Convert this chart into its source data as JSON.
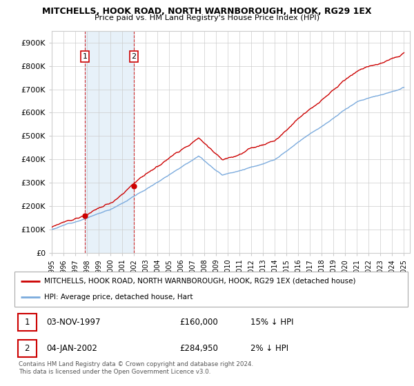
{
  "title": "MITCHELLS, HOOK ROAD, NORTH WARNBOROUGH, HOOK, RG29 1EX",
  "subtitle": "Price paid vs. HM Land Registry's House Price Index (HPI)",
  "legend_line1": "MITCHELLS, HOOK ROAD, NORTH WARNBOROUGH, HOOK, RG29 1EX (detached house)",
  "legend_line2": "HPI: Average price, detached house, Hart",
  "footnote": "Contains HM Land Registry data © Crown copyright and database right 2024.\nThis data is licensed under the Open Government Licence v3.0.",
  "sale1_date": "03-NOV-1997",
  "sale1_price": 160000,
  "sale1_hpi": "15% ↓ HPI",
  "sale2_date": "04-JAN-2002",
  "sale2_price": 284950,
  "sale2_hpi": "2% ↓ HPI",
  "price_line_color": "#cc0000",
  "hpi_line_color": "#7aaadd",
  "fill_color": "#d0e4f5",
  "background_color": "#ffffff",
  "ylim": [
    0,
    950000
  ],
  "yticks": [
    0,
    100000,
    200000,
    300000,
    400000,
    500000,
    600000,
    700000,
    800000,
    900000
  ],
  "ytick_labels": [
    "£0",
    "£100K",
    "£200K",
    "£300K",
    "£400K",
    "£500K",
    "£600K",
    "£700K",
    "£800K",
    "£900K"
  ],
  "xlim_start": 1995,
  "xlim_end": 2025.5,
  "t1": 1997.833,
  "t2": 2002.0,
  "p1": 160000,
  "p2": 284950
}
